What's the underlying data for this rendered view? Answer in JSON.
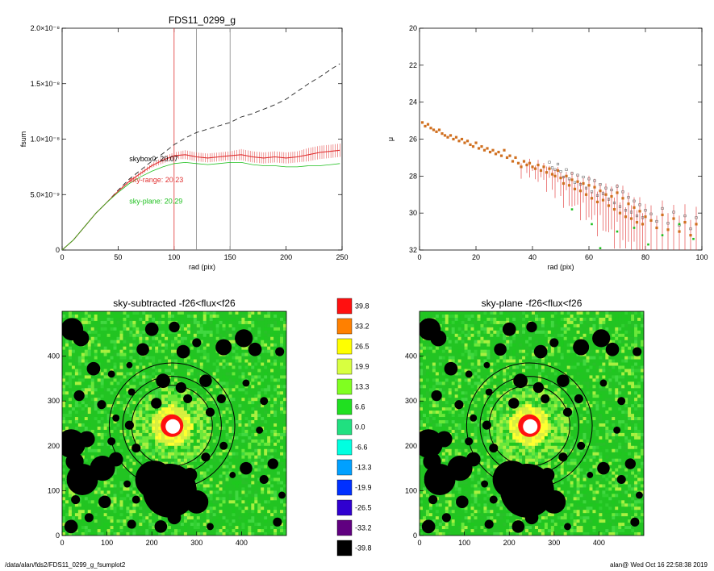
{
  "footer": {
    "left": "/data/alan/fds2/FDS11_0299_g_fsumplot2",
    "right": "alan@  Wed Oct 16 22:58:38 2019"
  },
  "chart_data": [
    {
      "id": "fsum_profile",
      "type": "line",
      "title": "FDS11_0299_g",
      "xlabel": "rad (pix)",
      "ylabel": "fsum",
      "xlim": [
        0,
        250
      ],
      "ylim": [
        0,
        2e-08
      ],
      "xticks": [
        0,
        50,
        100,
        150,
        200,
        250
      ],
      "yticks": [
        {
          "v": 0,
          "label": "0"
        },
        {
          "v": 5e-09,
          "label": "5.0×10⁻⁹"
        },
        {
          "v": 1e-08,
          "label": "1.0×10⁻⁸"
        },
        {
          "v": 1.5e-08,
          "label": "1.5×10⁻⁸"
        },
        {
          "v": 2e-08,
          "label": "2.0×10⁻⁸"
        }
      ],
      "vlines": [
        {
          "x": 100,
          "color": "#e03030"
        },
        {
          "x": 120,
          "color": "#888888"
        },
        {
          "x": 150,
          "color": "#888888"
        }
      ],
      "series": [
        {
          "style": "dashed",
          "color": "#222222",
          "x": [
            0,
            10,
            20,
            30,
            40,
            50,
            60,
            70,
            80,
            90,
            100,
            110,
            120,
            130,
            140,
            150,
            160,
            170,
            180,
            190,
            200,
            210,
            220,
            230,
            240,
            248
          ],
          "y": [
            0,
            9e-10,
            2.1e-09,
            3.3e-09,
            4.3e-09,
            5.4e-09,
            6.4e-09,
            7.2e-09,
            8e-09,
            8.7e-09,
            9.5e-09,
            1.01e-08,
            1.06e-08,
            1.09e-08,
            1.12e-08,
            1.15e-08,
            1.2e-08,
            1.23e-08,
            1.27e-08,
            1.31e-08,
            1.36e-08,
            1.43e-08,
            1.5e-08,
            1.56e-08,
            1.63e-08,
            1.68e-08
          ]
        },
        {
          "style": "errorbars",
          "color": "#e03030",
          "x": [
            0,
            10,
            20,
            30,
            40,
            50,
            60,
            70,
            80,
            90,
            100,
            110,
            120,
            130,
            140,
            150,
            160,
            170,
            180,
            190,
            200,
            210,
            220,
            230,
            240,
            248
          ],
          "y": [
            0,
            9e-10,
            2.1e-09,
            3.3e-09,
            4.3e-09,
            5.3e-09,
            6.2e-09,
            6.9e-09,
            7.6e-09,
            8.1e-09,
            8.5e-09,
            8.6e-09,
            8.4e-09,
            8.3e-09,
            8.4e-09,
            8.5e-09,
            8.6e-09,
            8.4e-09,
            8.3e-09,
            8.4e-09,
            8.3e-09,
            8.4e-09,
            8.6e-09,
            8.8e-09,
            8.9e-09,
            9e-09
          ],
          "err": [
            0,
            0,
            0,
            0,
            0,
            1e-10,
            1e-10,
            2e-10,
            2e-10,
            3e-10,
            3e-10,
            4e-10,
            4e-10,
            4e-10,
            4e-10,
            4e-10,
            5e-10,
            5e-10,
            5e-10,
            5e-10,
            5e-10,
            5e-10,
            6e-10,
            6e-10,
            6e-10,
            6e-10
          ]
        },
        {
          "style": "solid",
          "color": "#20c020",
          "x": [
            0,
            10,
            20,
            30,
            40,
            50,
            60,
            70,
            80,
            90,
            100,
            110,
            120,
            130,
            140,
            150,
            160,
            170,
            180,
            190,
            200,
            210,
            220,
            230,
            240,
            248
          ],
          "y": [
            0,
            9e-10,
            2.1e-09,
            3.3e-09,
            4.3e-09,
            5.2e-09,
            6e-09,
            6.6e-09,
            7.1e-09,
            7.5e-09,
            7.8e-09,
            7.9e-09,
            7.8e-09,
            7.7e-09,
            7.8e-09,
            7.9e-09,
            7.9e-09,
            7.7e-09,
            7.6e-09,
            7.6e-09,
            7.5e-09,
            7.5e-09,
            7.6e-09,
            7.6e-09,
            7.7e-09,
            7.8e-09
          ]
        }
      ],
      "annotations": [
        {
          "text": "skybox0: 20.07",
          "color": "#000000",
          "x": 60,
          "y": 8e-09
        },
        {
          "text": "sky-range: 20.23",
          "color": "#e03030",
          "x": 60,
          "y": 6.1e-09
        },
        {
          "text": "sky-plane: 20.29",
          "color": "#20c020",
          "x": 60,
          "y": 4.2e-09
        }
      ]
    },
    {
      "id": "mu_profile",
      "type": "scatter",
      "title": "",
      "xlabel": "rad (pix)",
      "ylabel": "μ",
      "xlim": [
        0,
        100
      ],
      "ylim": [
        20,
        32
      ],
      "y_inverted": true,
      "xticks": [
        0,
        20,
        40,
        60,
        80,
        100
      ],
      "yticks": [
        20,
        22,
        24,
        26,
        28,
        30,
        32
      ],
      "series": [
        {
          "color": "#d07020",
          "x": [
            1,
            2,
            3,
            4,
            5,
            6,
            7,
            8,
            9,
            10,
            11,
            12,
            13,
            14,
            15,
            16,
            17,
            18,
            19,
            20,
            21,
            22,
            23,
            24,
            25,
            26,
            27,
            28,
            29,
            30,
            31,
            32,
            33,
            34,
            35,
            36,
            37,
            38,
            39,
            40,
            41,
            42,
            43,
            44,
            45,
            46,
            47,
            48,
            49,
            50,
            51,
            52,
            53,
            54,
            55,
            56,
            57,
            58,
            59,
            60,
            61,
            62,
            63,
            64,
            65,
            66,
            67,
            68,
            69,
            70,
            71,
            72,
            73,
            74,
            75,
            76,
            77,
            78,
            79,
            80,
            82,
            84,
            86,
            88,
            90,
            92,
            94,
            96,
            98
          ],
          "y": [
            25.1,
            25.3,
            25.2,
            25.4,
            25.5,
            25.6,
            25.5,
            25.7,
            25.8,
            25.9,
            25.8,
            26.0,
            25.9,
            26.1,
            26.0,
            26.2,
            26.1,
            26.3,
            26.4,
            26.2,
            26.5,
            26.4,
            26.6,
            26.5,
            26.7,
            26.6,
            26.8,
            26.7,
            26.9,
            26.6,
            27.0,
            26.9,
            27.2,
            27.0,
            27.3,
            27.5,
            27.2,
            27.4,
            27.3,
            27.5,
            27.6,
            27.4,
            27.7,
            27.5,
            27.8,
            27.6,
            27.9,
            28.0,
            27.7,
            28.1,
            28.4,
            28.0,
            28.5,
            28.2,
            28.7,
            28.3,
            28.8,
            28.4,
            29.0,
            28.5,
            29.2,
            28.6,
            29.4,
            28.8,
            29.3,
            29.0,
            29.6,
            29.1,
            29.8,
            28.9,
            30.0,
            29.2,
            30.2,
            29.5,
            30.3,
            29.7,
            30.5,
            29.9,
            30.6,
            30.2,
            30.4,
            30.8,
            30.1,
            30.9,
            30.3,
            31.0,
            30.5,
            31.2,
            30.6
          ]
        },
        {
          "color": "#20c020",
          "x": [
            54,
            61,
            64,
            70,
            76,
            81,
            86,
            92,
            97
          ],
          "y": [
            29.8,
            30.6,
            31.9,
            31.0,
            30.8,
            31.7,
            31.2,
            30.6,
            31.4
          ]
        }
      ]
    },
    {
      "id": "image_sky_subtracted",
      "type": "heatmap",
      "title": "sky-subtracted -f26<flux<f26",
      "xlim": [
        0,
        500
      ],
      "ylim": [
        0,
        500
      ],
      "xticks": [
        0,
        100,
        200,
        300,
        400
      ],
      "yticks": [
        0,
        100,
        200,
        300,
        400
      ],
      "center": [
        245,
        245
      ],
      "circle_radii": [
        90,
        110,
        140
      ]
    },
    {
      "id": "image_sky_plane",
      "type": "heatmap",
      "title": "sky-plane -f26<flux<f26",
      "xlim": [
        0,
        500
      ],
      "ylim": [
        0,
        500
      ],
      "xticks": [
        0,
        100,
        200,
        300,
        400
      ],
      "yticks": [
        0,
        100,
        200,
        300,
        400
      ],
      "center": [
        245,
        245
      ],
      "circle_radii": [
        90,
        110,
        140
      ]
    },
    {
      "id": "colorbar",
      "type": "table",
      "labels": [
        "39.8",
        "33.2",
        "26.5",
        "19.9",
        "13.3",
        "6.6",
        "0.0",
        "-6.6",
        "-13.3",
        "-19.9",
        "-26.5",
        "-33.2",
        "-39.8"
      ],
      "colors": [
        "#ff1010",
        "#ff8000",
        "#ffff00",
        "#d8ff40",
        "#80ff20",
        "#20e020",
        "#20e080",
        "#00ffe0",
        "#00a0ff",
        "#0030ff",
        "#3000d0",
        "#600080",
        "#000000"
      ]
    }
  ],
  "image_palette": {
    "noise": [
      "#1ec81e",
      "#30d030",
      "#28c028",
      "#40d840",
      "#6ae83a",
      "#a8f040",
      "#d8f040",
      "#ffff30",
      "#00d090",
      "#30e0b0",
      "#60e0e0",
      "#0090ff"
    ],
    "mask": "#000000",
    "galaxy_core": "#ffffff",
    "galaxy_ring": "#ff1010"
  }
}
